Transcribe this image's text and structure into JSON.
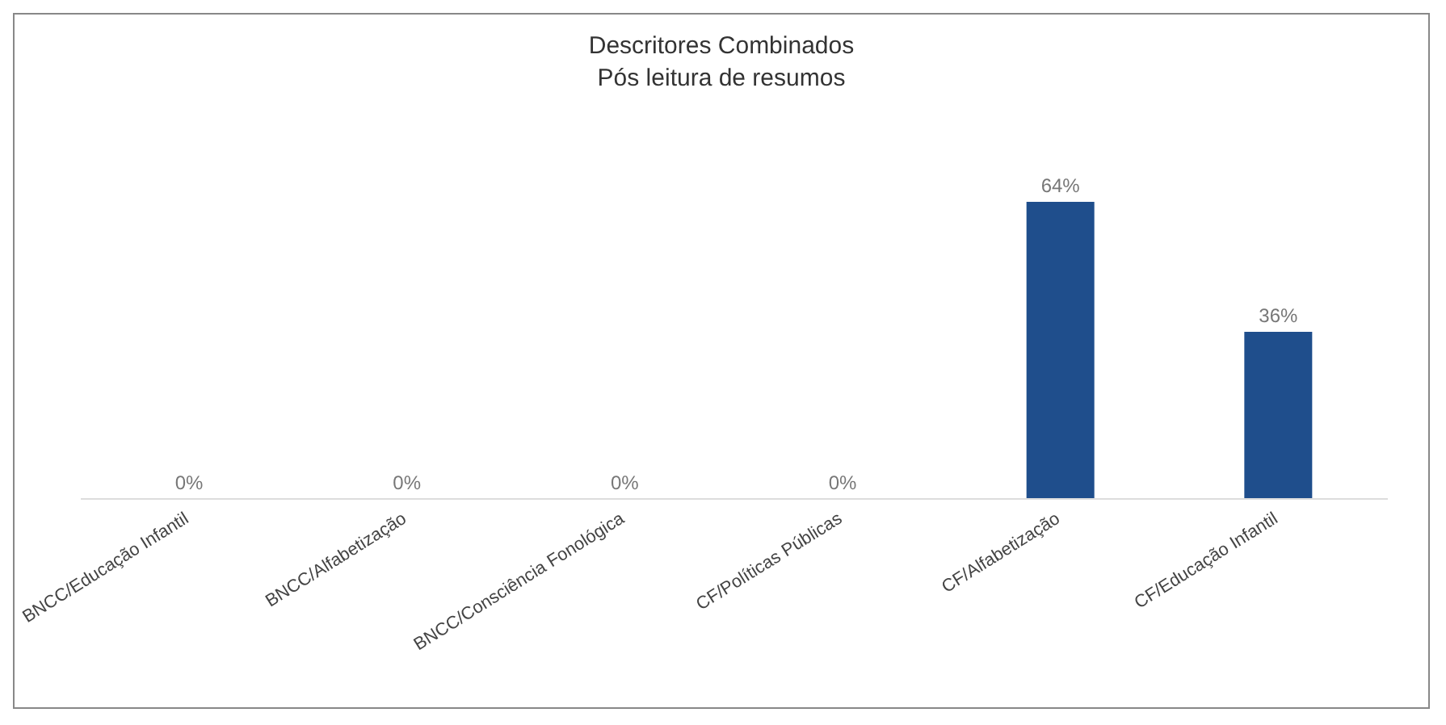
{
  "chart_data": {
    "type": "bar",
    "title": "Descritores Combinados",
    "subtitle": "Pós leitura de resumos",
    "categories": [
      "BNCC/Educação Infantil",
      "BNCC/Alfabetização",
      "BNCC/Consciência Fonológica",
      "CF/Políticas Públicas",
      "CF/Alfabetização",
      "CF/Educação Infantil"
    ],
    "values": [
      0,
      0,
      0,
      0,
      64,
      36
    ],
    "value_labels": [
      "0%",
      "0%",
      "0%",
      "0%",
      "64%",
      "36%"
    ],
    "color": "#1f4e8c",
    "tick_labels": "x"
  }
}
